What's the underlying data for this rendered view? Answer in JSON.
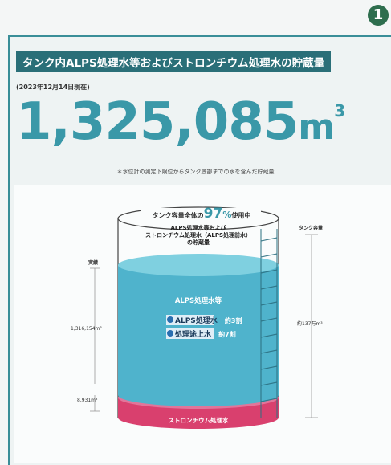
{
  "badge": "1",
  "header": {
    "title": "タンク内ALPS処理水等およびストロンチウム処理水の貯蔵量",
    "date": "(2023年12月14日現在)",
    "amount": "1,325,085",
    "unit": "m",
    "unit_sup": "3",
    "note": "＊水位計の測定下限位からタンク底部までの水を含んだ貯蔵量"
  },
  "tank": {
    "usage_prefix": "タンク容量全体の",
    "usage_value": "97",
    "usage_percent": "%",
    "usage_suffix": "使用中",
    "stored_label": [
      "ALPS処理水等および",
      "ストロンチウム処理水（ALPS処理前水）",
      "の貯蔵量"
    ],
    "capacity_label": "タンク容量",
    "capacity_value": "約137万m³",
    "actual_label": "実績",
    "alps_amount": "1,316,154m³",
    "sr_amount": "8,931m³",
    "alps_title": "ALPS処理水等",
    "rows": [
      {
        "name": "ALPS処理水",
        "share": "約3割"
      },
      {
        "name": "処理途上水",
        "share": "約7割"
      }
    ],
    "sr_title": "ストロンチウム処理水"
  }
}
